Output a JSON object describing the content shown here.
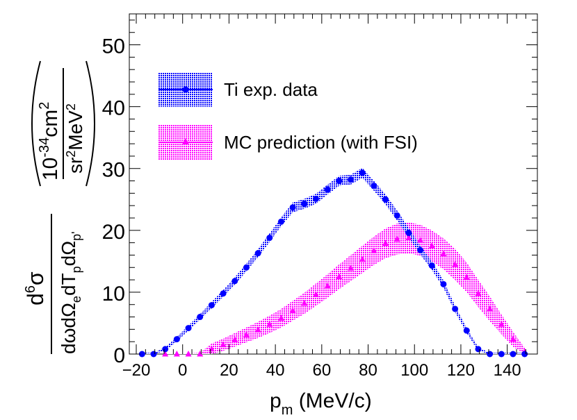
{
  "chart_data": {
    "type": "scatter",
    "xlabel_main": "p",
    "xlabel_sub": "m",
    "xlabel_rest": " (MeV/c)",
    "ylabel": {
      "numerator": "d",
      "numerator_sup": "6",
      "numerator_sym": "σ",
      "denominator": "dωdΩ",
      "denominator_sub_e": "e",
      "denominator_mid": "dT",
      "denominator_sub_p": "p",
      "denominator_tail": "dΩ",
      "denominator_sub_pp": "p'",
      "unit_num_base": "10",
      "unit_num_exp": "-34",
      "unit_num_rest": "cm",
      "unit_num_sup": "2",
      "unit_den_base": "sr",
      "unit_den_sup": "2",
      "unit_den_rest": "MeV",
      "unit_den_sup2": "2"
    },
    "xlim": [
      -23,
      153
    ],
    "ylim": [
      0,
      55
    ],
    "x_ticks": [
      -20,
      0,
      20,
      40,
      60,
      80,
      100,
      120,
      140
    ],
    "x_tick_labels": [
      "−20",
      "0",
      "20",
      "40",
      "60",
      "80",
      "100",
      "120",
      "140"
    ],
    "y_ticks": [
      0,
      10,
      20,
      30,
      40,
      50
    ],
    "y_tick_labels": [
      "0",
      "10",
      "20",
      "30",
      "40",
      "50"
    ],
    "legend": [
      {
        "label": "Ti exp. data",
        "color": "#0000ff",
        "marker": "circle"
      },
      {
        "label": "MC prediction (with FSI)",
        "color": "#ff00ff",
        "marker": "triangle"
      }
    ],
    "series": [
      {
        "name": "Ti exp. data",
        "color": "#0000ff",
        "marker": "circle",
        "x": [
          -17.5,
          -12.5,
          -7.5,
          -2.5,
          2.5,
          7.5,
          12.5,
          17.5,
          22.5,
          27.5,
          32.5,
          37.5,
          42.5,
          47.5,
          52.5,
          57.5,
          62.5,
          67.5,
          72.5,
          77.5,
          82.5,
          87.5,
          92.5,
          97.5,
          102.5,
          107.5,
          112.5,
          117.5,
          122.5,
          127.5,
          132.5,
          137.5,
          142.5,
          147.5
        ],
        "y": [
          0.0,
          0.0,
          0.8,
          2.4,
          4.2,
          6.0,
          7.9,
          9.8,
          11.8,
          14.0,
          16.3,
          18.8,
          21.4,
          23.7,
          24.3,
          25.1,
          26.6,
          28.0,
          28.2,
          29.3,
          27.2,
          25.0,
          22.4,
          19.6,
          16.8,
          14.3,
          11.3,
          7.3,
          3.8,
          0.8,
          0.0,
          0.0,
          0.0,
          0.0
        ],
        "band_half": [
          0.2,
          0.2,
          0.3,
          0.35,
          0.4,
          0.45,
          0.5,
          0.55,
          0.6,
          0.6,
          0.65,
          0.7,
          0.7,
          0.8,
          0.8,
          0.8,
          0.8,
          0.8,
          0.8,
          0.8,
          0.8,
          0.8,
          0.8,
          0.8,
          0.7,
          0.7,
          0.6,
          0.5,
          0.4,
          0.3,
          0.2,
          0.2,
          0.2,
          0.2
        ]
      },
      {
        "name": "MC prediction (with FSI)",
        "color": "#ff00ff",
        "marker": "triangle",
        "x": [
          -7.5,
          -2.5,
          2.5,
          7.5,
          12.5,
          17.5,
          22.5,
          27.5,
          32.5,
          37.5,
          42.5,
          47.5,
          52.5,
          57.5,
          62.5,
          67.5,
          72.5,
          77.5,
          82.5,
          87.5,
          92.5,
          97.5,
          102.5,
          107.5,
          112.5,
          117.5,
          122.5,
          127.5,
          132.5,
          137.5,
          142.5,
          147.5
        ],
        "y": [
          0.0,
          0.0,
          0.0,
          0.0,
          0.8,
          1.5,
          2.3,
          3.1,
          3.9,
          4.8,
          5.8,
          7.0,
          8.2,
          9.6,
          11.0,
          12.5,
          13.9,
          15.3,
          16.7,
          17.9,
          18.6,
          18.8,
          18.4,
          17.5,
          16.2,
          14.5,
          12.4,
          9.8,
          7.3,
          4.8,
          2.4,
          0.4
        ],
        "band_half": [
          0.1,
          0.1,
          0.1,
          0.2,
          0.9,
          1.0,
          1.1,
          1.2,
          1.3,
          1.4,
          1.5,
          1.6,
          1.7,
          1.8,
          1.9,
          2.0,
          2.1,
          2.2,
          2.3,
          2.4,
          2.5,
          2.5,
          2.5,
          2.5,
          2.5,
          2.5,
          2.4,
          2.2,
          2.0,
          1.6,
          1.2,
          0.6
        ]
      }
    ]
  }
}
